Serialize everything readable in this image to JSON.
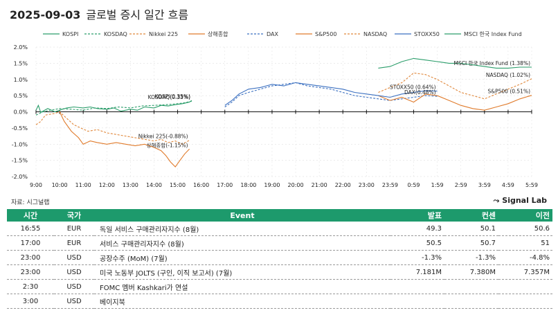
{
  "header": {
    "date": "2025-09-03",
    "title": "글로벌 증시 일간 흐름"
  },
  "chart_data": {
    "type": "line",
    "title": "글로벌 증시 일간 흐름",
    "xlabel": "",
    "ylabel": "",
    "ylim": [
      -2.0,
      2.0
    ],
    "y_ticks": [
      "2.0%",
      "1.5%",
      "1.0%",
      "0.5%",
      "0.0%",
      "-0.5%",
      "-1.0%",
      "-1.5%",
      "-2.0%"
    ],
    "x_ticks": [
      "9:00",
      "10:00",
      "11:00",
      "12:00",
      "13:00",
      "14:00",
      "15:00",
      "16:00",
      "17:00",
      "18:00",
      "19:00",
      "20:00",
      "21:00",
      "22:00",
      "23:00",
      "23:59",
      "0:59",
      "1:59",
      "2:59",
      "3:59",
      "4:59",
      "5:59"
    ],
    "legend_position": "top",
    "grid": true,
    "series": [
      {
        "name": "KOSPI",
        "color": "#2a9d6a",
        "dash": false,
        "x": [
          0.0,
          0.1,
          0.2,
          0.5,
          0.8,
          1.0,
          1.3,
          1.6,
          2.0,
          2.3,
          2.6,
          3.0,
          3.3,
          3.6,
          4.0,
          4.3,
          4.6,
          5.0,
          5.3,
          5.6,
          5.9,
          6.2,
          6.5,
          6.6
        ],
        "y": [
          0.05,
          0.2,
          -0.02,
          0.1,
          0.0,
          0.05,
          0.12,
          0.15,
          0.12,
          0.15,
          0.1,
          0.08,
          0.12,
          0.02,
          0.08,
          0.05,
          0.15,
          0.12,
          0.2,
          0.18,
          0.22,
          0.25,
          0.3,
          0.35
        ],
        "end_label": "KOSPI(0.35%)"
      },
      {
        "name": "KOSDAQ",
        "color": "#2a9d6a",
        "dash": true,
        "x": [
          0.0,
          0.3,
          0.6,
          1.0,
          1.5,
          2.0,
          2.5,
          3.0,
          3.5,
          4.0,
          4.5,
          5.0,
          5.5,
          6.0,
          6.3,
          6.6
        ],
        "y": [
          -0.1,
          0.0,
          0.05,
          0.1,
          0.08,
          0.05,
          0.12,
          0.1,
          0.15,
          0.12,
          0.18,
          0.2,
          0.22,
          0.25,
          0.28,
          0.33
        ],
        "end_label": "KOSDAQ(0.33%)"
      },
      {
        "name": "Nikkei 225",
        "color": "#e0873a",
        "dash": true,
        "x": [
          0.0,
          0.2,
          0.4,
          0.8,
          1.0,
          1.3,
          1.6,
          1.9,
          2.2,
          2.6,
          3.0,
          3.4,
          3.8,
          4.2,
          4.6,
          5.0,
          5.3,
          5.6,
          5.9,
          6.2,
          6.5
        ],
        "y": [
          -0.4,
          -0.3,
          -0.1,
          -0.05,
          0.0,
          -0.2,
          -0.4,
          -0.5,
          -0.6,
          -0.55,
          -0.65,
          -0.7,
          -0.75,
          -0.8,
          -0.85,
          -0.9,
          -0.85,
          -0.95,
          -0.9,
          -1.0,
          -0.88
        ],
        "end_label": "Nikkei 225(-0.88%)"
      },
      {
        "name": "상해종합",
        "color": "#e07a2a",
        "dash": false,
        "x": [
          1.0,
          1.2,
          1.5,
          1.8,
          2.0,
          2.3,
          2.6,
          3.0,
          3.4,
          3.8,
          4.2,
          4.6,
          5.0,
          5.3,
          5.5,
          5.7,
          5.9,
          6.1,
          6.3,
          6.5
        ],
        "y": [
          0.0,
          -0.3,
          -0.6,
          -0.8,
          -1.0,
          -0.9,
          -0.95,
          -1.0,
          -0.95,
          -1.0,
          -1.05,
          -1.0,
          -1.1,
          -1.2,
          -1.35,
          -1.55,
          -1.7,
          -1.5,
          -1.3,
          -1.15
        ],
        "end_label": "상해종합(-1.15%)"
      },
      {
        "name": "DAX",
        "color": "#3a6fc0",
        "dash": true,
        "x": [
          8.0,
          8.3,
          8.6,
          9.0,
          9.5,
          10.0,
          10.5,
          11.0,
          11.5,
          12.0,
          12.5,
          13.0,
          13.5,
          14.0,
          14.5,
          15.0,
          15.5,
          16.0,
          16.5,
          17.0
        ],
        "y": [
          0.15,
          0.3,
          0.5,
          0.6,
          0.7,
          0.8,
          0.85,
          0.9,
          0.8,
          0.75,
          0.7,
          0.6,
          0.5,
          0.45,
          0.4,
          0.35,
          0.4,
          0.45,
          0.5,
          0.48
        ],
        "end_label": "DAX(0.48%)"
      },
      {
        "name": "S&P500",
        "color": "#e07a2a",
        "dash": false,
        "x": [
          14.5,
          15.0,
          15.5,
          16.0,
          16.5,
          17.0,
          17.5,
          18.0,
          18.5,
          19.0,
          19.5,
          20.0,
          20.5,
          21.0
        ],
        "y": [
          0.5,
          0.35,
          0.45,
          0.3,
          0.55,
          0.5,
          0.35,
          0.2,
          0.1,
          0.05,
          0.15,
          0.25,
          0.4,
          0.51
        ],
        "end_label": "S&P500 (0.51%)"
      },
      {
        "name": "NASDAQ",
        "color": "#e0873a",
        "dash": true,
        "x": [
          14.5,
          15.0,
          15.5,
          16.0,
          16.5,
          17.0,
          17.5,
          18.0,
          18.5,
          19.0,
          19.5,
          20.0,
          20.5,
          21.0
        ],
        "y": [
          0.6,
          0.75,
          0.9,
          1.2,
          1.15,
          1.0,
          0.8,
          0.6,
          0.5,
          0.4,
          0.55,
          0.7,
          0.85,
          1.02
        ],
        "end_label": "NASDAQ (1.02%)"
      },
      {
        "name": "STOXX50",
        "color": "#3a6fc0",
        "dash": false,
        "x": [
          8.0,
          8.3,
          8.6,
          9.0,
          9.5,
          10.0,
          10.5,
          11.0,
          11.5,
          12.0,
          12.5,
          13.0,
          13.5,
          14.0,
          14.5,
          15.0,
          15.5,
          16.0,
          16.5,
          17.0
        ],
        "y": [
          0.2,
          0.35,
          0.55,
          0.7,
          0.75,
          0.85,
          0.8,
          0.9,
          0.85,
          0.8,
          0.75,
          0.7,
          0.6,
          0.55,
          0.5,
          0.45,
          0.55,
          0.6,
          0.65,
          0.64
        ],
        "end_label": "STOXX50 (0.64%)"
      },
      {
        "name": "MSCI 한국 Index Fund",
        "color": "#2a9d6a",
        "dash": false,
        "x": [
          14.5,
          15.0,
          15.5,
          16.0,
          16.5,
          17.0,
          17.5,
          18.0,
          18.5,
          19.0,
          19.5,
          20.0,
          20.5,
          21.0
        ],
        "y": [
          1.35,
          1.4,
          1.55,
          1.65,
          1.6,
          1.55,
          1.5,
          1.5,
          1.45,
          1.4,
          1.35,
          1.35,
          1.38,
          1.38
        ],
        "end_label": "MSCI 한국 Index Fund (1.38%)"
      }
    ]
  },
  "footer": {
    "source": "자료: 시그널랩",
    "brand": "Signal Lab",
    "brand_mark": "⤳"
  },
  "events": {
    "columns": [
      "시간",
      "국가",
      "Event",
      "발표",
      "컨센",
      "이전"
    ],
    "rows": [
      {
        "time": "16:55",
        "country": "EUR",
        "event": "독일 서비스 구매관리자지수 (8월)",
        "actual": "49.3",
        "consensus": "50.1",
        "previous": "50.6"
      },
      {
        "time": "17:00",
        "country": "EUR",
        "event": "서비스 구매관리자지수 (8월)",
        "actual": "50.5",
        "consensus": "50.7",
        "previous": "51"
      },
      {
        "time": "23:00",
        "country": "USD",
        "event": "공장수주 (MoM) (7월)",
        "actual": "-1.3%",
        "consensus": "-1.3%",
        "previous": "-4.8%"
      },
      {
        "time": "23:00",
        "country": "USD",
        "event": "미국 노동부 JOLTS (구인, 이직 보고서) (7월)",
        "actual": "7.181M",
        "consensus": "7.380M",
        "previous": "7.357M"
      },
      {
        "time": "2:30",
        "country": "USD",
        "event": "FOMC 멤버 Kashkari가 연설",
        "actual": "",
        "consensus": "",
        "previous": ""
      },
      {
        "time": "3:00",
        "country": "USD",
        "event": "베이지북",
        "actual": "",
        "consensus": "",
        "previous": ""
      }
    ]
  }
}
